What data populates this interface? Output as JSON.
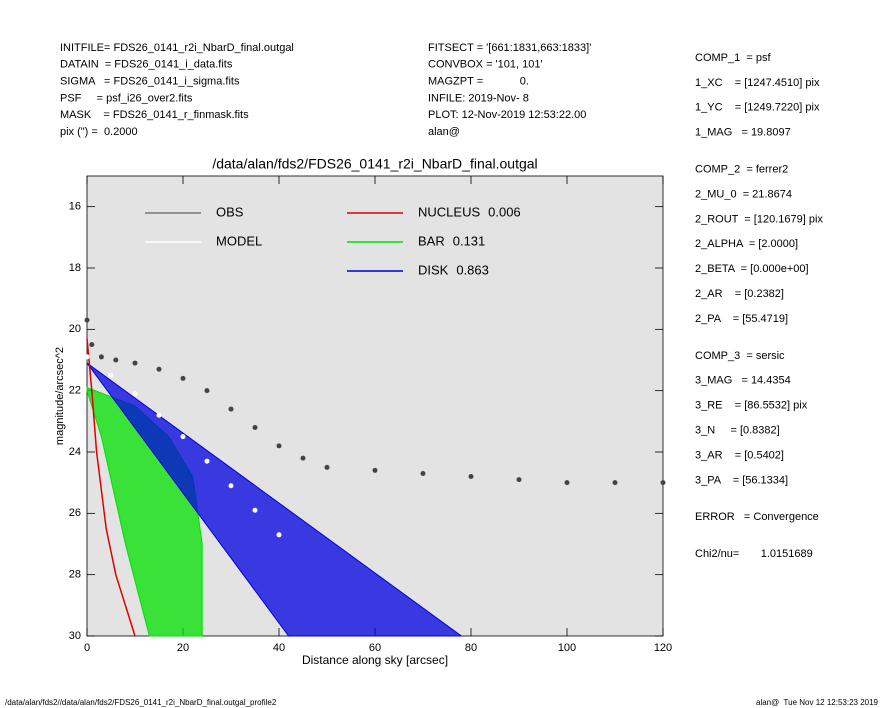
{
  "header": {
    "left": [
      "INITFILE= FDS26_0141_r2i_NbarD_final.outgal",
      "DATAIN  = FDS26_0141_i_data.fits",
      "SIGMA   = FDS26_0141_i_sigma.fits",
      "PSF     = psf_i26_over2.fits",
      "MASK    = FDS26_0141_r_finmask.fits",
      "pix (\") =  0.2000"
    ],
    "middle": [
      "FITSECT = '[661:1831,663:1833]'",
      "CONVBOX = '101, 101'",
      "MAGZPT =            0.",
      "INFILE: 2019-Nov- 8",
      "PLOT: 12-Nov-2019 12:53:22.00",
      "alan@"
    ]
  },
  "components": [
    [
      "COMP_1  = psf",
      "1_XC    = [1247.4510] pix",
      "1_YC    = [1249.7220] pix",
      "1_MAG   = 19.8097"
    ],
    [
      "COMP_2  = ferrer2",
      "2_MU_0  = 21.8674",
      "2_ROUT  = [120.1679] pix",
      "2_ALPHA  = [2.0000]",
      "2_BETA  = [0.000e+00]",
      "2_AR    = [0.2382]",
      "2_PA    = [55.4719]"
    ],
    [
      "COMP_3  = sersic",
      "3_MAG   = 14.4354",
      "3_RE    = [86.5532] pix",
      "3_N     = [0.8382]",
      "3_AR    = [0.5402]",
      "3_PA    = [56.1334]"
    ],
    [
      "ERROR   = Convergence"
    ],
    [
      "Chi2/nu=       1.0151689"
    ]
  ],
  "footer": {
    "left": "/data/alan/fds2//data/alan/fds2/FDS26_0141_r2i_NbarD_final.outgal_profile2",
    "right": "alan@  Tue Nov 12 12:53:23 2019"
  },
  "chart_data": {
    "type": "scatter",
    "title": "/data/alan/fds2/FDS26_0141_r2i_NbarD_final.outgal",
    "x_label": "Distance along sky [arcsec]",
    "y_label": "magnitude/arcsec^2",
    "xlim": [
      0,
      120
    ],
    "xticks": [
      0,
      20,
      40,
      60,
      80,
      100,
      120
    ],
    "ylim": [
      30,
      15
    ],
    "yticks": [
      16,
      18,
      20,
      22,
      24,
      26,
      28,
      30
    ],
    "series": [
      {
        "name": "OBS",
        "color": "#444444",
        "legend_color": "#777777",
        "style": "points",
        "x": [
          0,
          1,
          3,
          6,
          10,
          15,
          20,
          25,
          30,
          35,
          40,
          45,
          50,
          60,
          70,
          80,
          90,
          100,
          110,
          120
        ],
        "values": [
          19.7,
          20.5,
          20.9,
          21.0,
          21.1,
          21.3,
          21.6,
          22.0,
          22.6,
          23.2,
          23.8,
          24.2,
          24.5,
          24.6,
          24.7,
          24.8,
          24.9,
          25.0,
          25.0,
          25.0
        ]
      },
      {
        "name": "MODEL",
        "color": "#ffffff",
        "style": "points",
        "x": [
          0,
          5,
          10,
          15,
          20,
          25,
          30,
          35,
          40
        ],
        "values": [
          20.9,
          21.5,
          22.1,
          22.8,
          23.5,
          24.3,
          25.1,
          25.9,
          26.7
        ]
      },
      {
        "name": "NUCLEUS",
        "fraction": 0.006,
        "color": "#e00000",
        "style": "line",
        "x": [
          0,
          1,
          2,
          4,
          6,
          8,
          10
        ],
        "values": [
          20.3,
          22.0,
          24.0,
          26.5,
          28.0,
          29.0,
          30.0
        ]
      },
      {
        "name": "BAR",
        "fraction": 0.131,
        "color": "#00e000",
        "style": "area",
        "x": [
          0,
          10,
          17,
          22,
          24,
          24,
          13,
          8,
          3,
          0
        ],
        "values": [
          21.9,
          22.5,
          23.5,
          24.8,
          27.0,
          30.0,
          30.0,
          27.0,
          23.5,
          22.0
        ]
      },
      {
        "name": "DISK",
        "fraction": 0.863,
        "color": "#0000e0",
        "style": "area",
        "x": [
          0,
          78,
          42
        ],
        "values": [
          21.1,
          30.0,
          30.0
        ]
      }
    ]
  }
}
